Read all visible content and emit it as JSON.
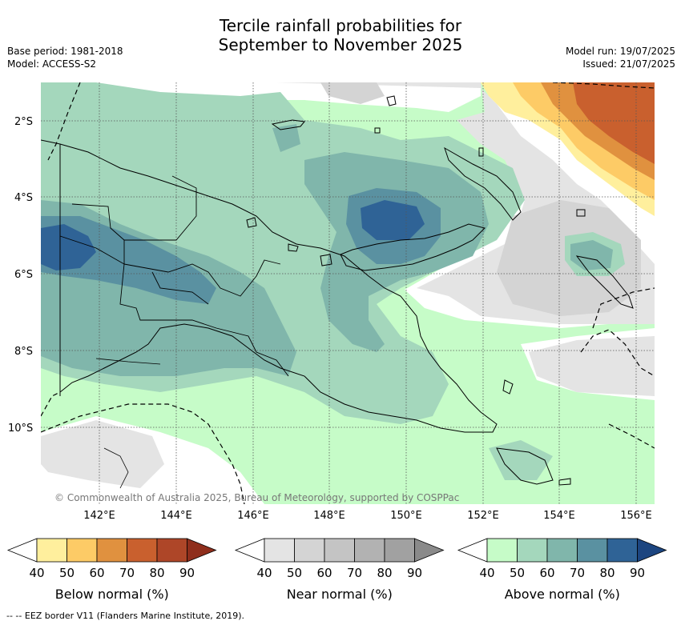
{
  "title_line1": "Tercile rainfall probabilities for",
  "title_line2": "September to November 2025",
  "base_period": "Base period: 1981-2018",
  "model": "Model: ACCESS-S2",
  "model_run": "Model run: 19/07/2025",
  "issued": "Issued: 21/07/2025",
  "latitude_labels": [
    "2°S",
    "4°S",
    "6°S",
    "8°S",
    "10°S"
  ],
  "longitude_labels": [
    "142°E",
    "144°E",
    "146°E",
    "148°E",
    "150°E",
    "152°E",
    "154°E",
    "156°E"
  ],
  "copyright": "© Commonwealth of Australia 2025, Bureau of Meteorology, supported by COSPPac",
  "footnote": "-- -- EEZ border V11 (Flanders Marine Institute, 2019).",
  "colorbars": [
    {
      "name": "Below normal (%)",
      "ticks": [
        "40",
        "50",
        "60",
        "70",
        "80",
        "90"
      ],
      "colors": [
        "#ffef9d",
        "#fdcb66",
        "#e0913f",
        "#c9602e",
        "#ae4628",
        "#8f2e1c"
      ]
    },
    {
      "name": "Near normal (%)",
      "ticks": [
        "40",
        "50",
        "60",
        "70",
        "80",
        "90"
      ],
      "colors": [
        "#e4e4e4",
        "#d4d4d4",
        "#c4c4c4",
        "#b2b2b2",
        "#a1a1a1",
        "#8a8a8a"
      ]
    },
    {
      "name": "Above normal (%)",
      "ticks": [
        "40",
        "50",
        "60",
        "70",
        "80",
        "90"
      ],
      "colors": [
        "#c6fcc8",
        "#a4d7bc",
        "#80b6ab",
        "#5a91a1",
        "#2f6396",
        "#1c4580"
      ]
    }
  ]
}
